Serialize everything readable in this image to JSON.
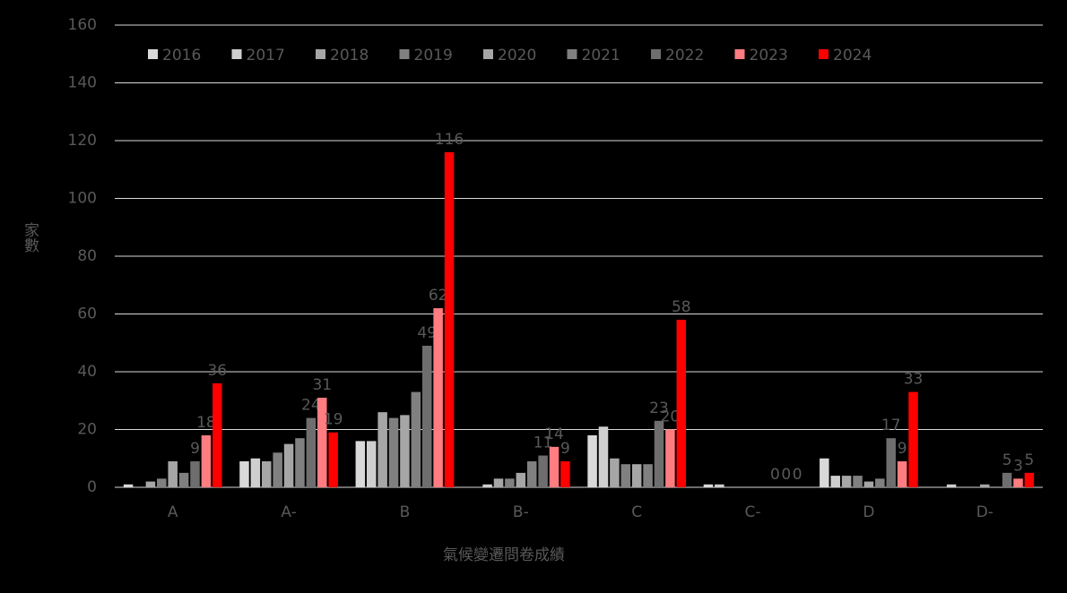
{
  "chart_data": {
    "type": "bar",
    "y_label": "家數",
    "x_label": "氣候變遷問卷成績",
    "categories": [
      "A",
      "A-",
      "B",
      "B-",
      "C",
      "C-",
      "D",
      "D-"
    ],
    "series": [
      {
        "name": "2016",
        "color": "#d9d9d9",
        "values": [
          1,
          9,
          16,
          0,
          18,
          1,
          10,
          0
        ]
      },
      {
        "name": "2017",
        "color": "#cfcfcf",
        "values": [
          0,
          10,
          16,
          1,
          21,
          1,
          4,
          1
        ]
      },
      {
        "name": "2018",
        "color": "#a6a6a6",
        "values": [
          2,
          9,
          26,
          3,
          10,
          0,
          4,
          0
        ]
      },
      {
        "name": "2019",
        "color": "#808080",
        "values": [
          3,
          12,
          24,
          3,
          8,
          0,
          4,
          0
        ]
      },
      {
        "name": "2020",
        "color": "#a6a6a6",
        "values": [
          9,
          15,
          25,
          5,
          8,
          0,
          2,
          1
        ]
      },
      {
        "name": "2021",
        "color": "#808080",
        "values": [
          5,
          17,
          33,
          9,
          8,
          0,
          3,
          0
        ]
      },
      {
        "name": "2022",
        "color": "#6e6e6e",
        "values": [
          9,
          24,
          49,
          11,
          23,
          0,
          17,
          5
        ],
        "labels": true
      },
      {
        "name": "2023",
        "color": "#ff7c80",
        "values": [
          18,
          31,
          62,
          14,
          20,
          0,
          9,
          3
        ],
        "labels": true
      },
      {
        "name": "2024",
        "color": "#ff0000",
        "values": [
          36,
          19,
          116,
          9,
          58,
          0,
          33,
          5
        ],
        "labels": true
      }
    ],
    "ylim": [
      0,
      160
    ],
    "yticks": [
      0,
      20,
      40,
      60,
      80,
      100,
      120,
      140,
      160
    ],
    "grid": true,
    "legend": "top"
  }
}
